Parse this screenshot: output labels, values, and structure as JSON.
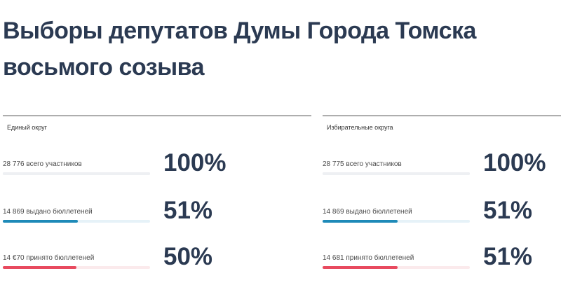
{
  "title": "Выборы депутатов Думы Города Томска восьмого созыва",
  "panels": [
    {
      "label": "Единый округ",
      "stats": [
        {
          "text": "28 776 всего участников",
          "percent": "100%",
          "fill": 1.0,
          "color": "#eef0f3"
        },
        {
          "text": "14 869 выдано бюллетеней",
          "percent": "51%",
          "fill": 0.51,
          "color": "#1e8ab8"
        },
        {
          "text": "14 €70 принято бюллетеней",
          "percent": "50%",
          "fill": 0.5,
          "color": "#e84a5f"
        }
      ]
    },
    {
      "label": "Избирательные округа",
      "stats": [
        {
          "text": "28 775 всего участников",
          "percent": "100%",
          "fill": 1.0,
          "color": "#eef0f3"
        },
        {
          "text": "14 869 выдано бюллетеней",
          "percent": "51%",
          "fill": 0.51,
          "color": "#1e8ab8"
        },
        {
          "text": "14 681 принято бюллетеней",
          "percent": "51%",
          "fill": 0.51,
          "color": "#e84a5f"
        }
      ]
    }
  ]
}
